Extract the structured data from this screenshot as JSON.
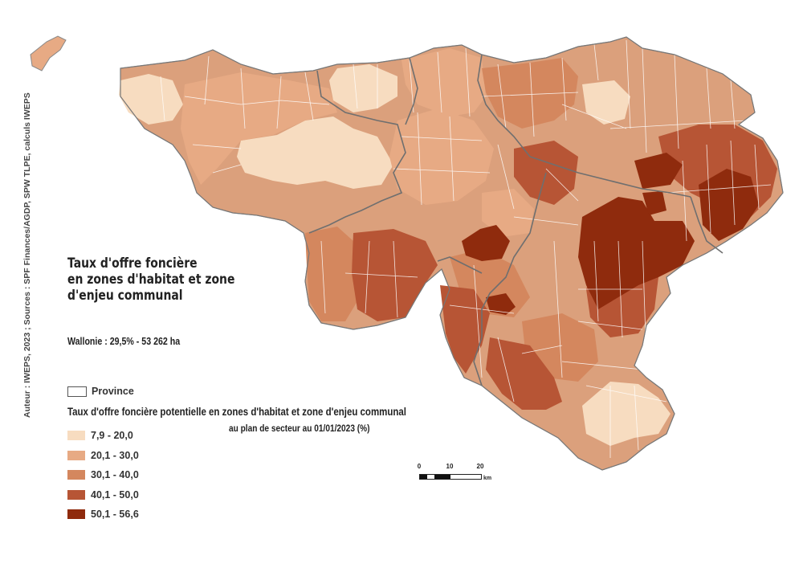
{
  "map": {
    "title_lines": [
      "Taux d'offre foncière",
      "en zones d'habitat et zone",
      "d'enjeu communal"
    ],
    "summary": "Wallonie : 29,5% - 53 262 ha",
    "credit": "Auteur : IWEPS, 2023 ; Sources : SPF Finances/AGDP, SPW TLPE, calculs IWEPS",
    "province_legend_label": "Province",
    "legend_title": "Taux d'offre foncière potentielle en zones d'habitat et zone d'enjeu communal",
    "legend_subtitle": "au plan de secteur au 01/01/2023 (%)",
    "classes": [
      {
        "label": "7,9 - 20,0",
        "color": "#f7dcc0"
      },
      {
        "label": "20,1 - 30,0",
        "color": "#e7aa84"
      },
      {
        "label": "30,1 - 40,0",
        "color": "#d4875e"
      },
      {
        "label": "40,1 - 50,0",
        "color": "#b75535"
      },
      {
        "label": "50,1 - 56,6",
        "color": "#8f2b0d"
      }
    ],
    "scale": {
      "ticks": [
        "0",
        "10",
        "20"
      ],
      "unit": "km"
    }
  }
}
